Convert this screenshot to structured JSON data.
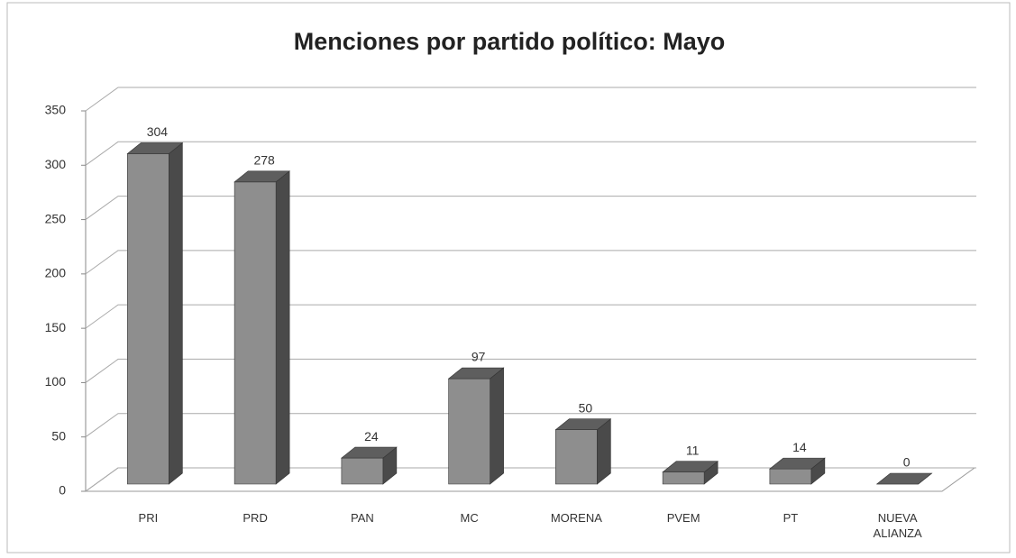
{
  "chart_data": {
    "type": "bar3d",
    "title": "Menciones por partido político: Mayo",
    "categories": [
      "PRI",
      "PRD",
      "PAN",
      "MC",
      "MORENA",
      "PVEM",
      "PT",
      "NUEVA ALIANZA"
    ],
    "values": [
      304,
      278,
      24,
      97,
      50,
      11,
      14,
      0
    ],
    "color": "#8e8e8e",
    "ylim": [
      0,
      350
    ],
    "yticks": [
      0,
      50,
      100,
      150,
      200,
      250,
      300,
      350
    ],
    "grid": true
  }
}
